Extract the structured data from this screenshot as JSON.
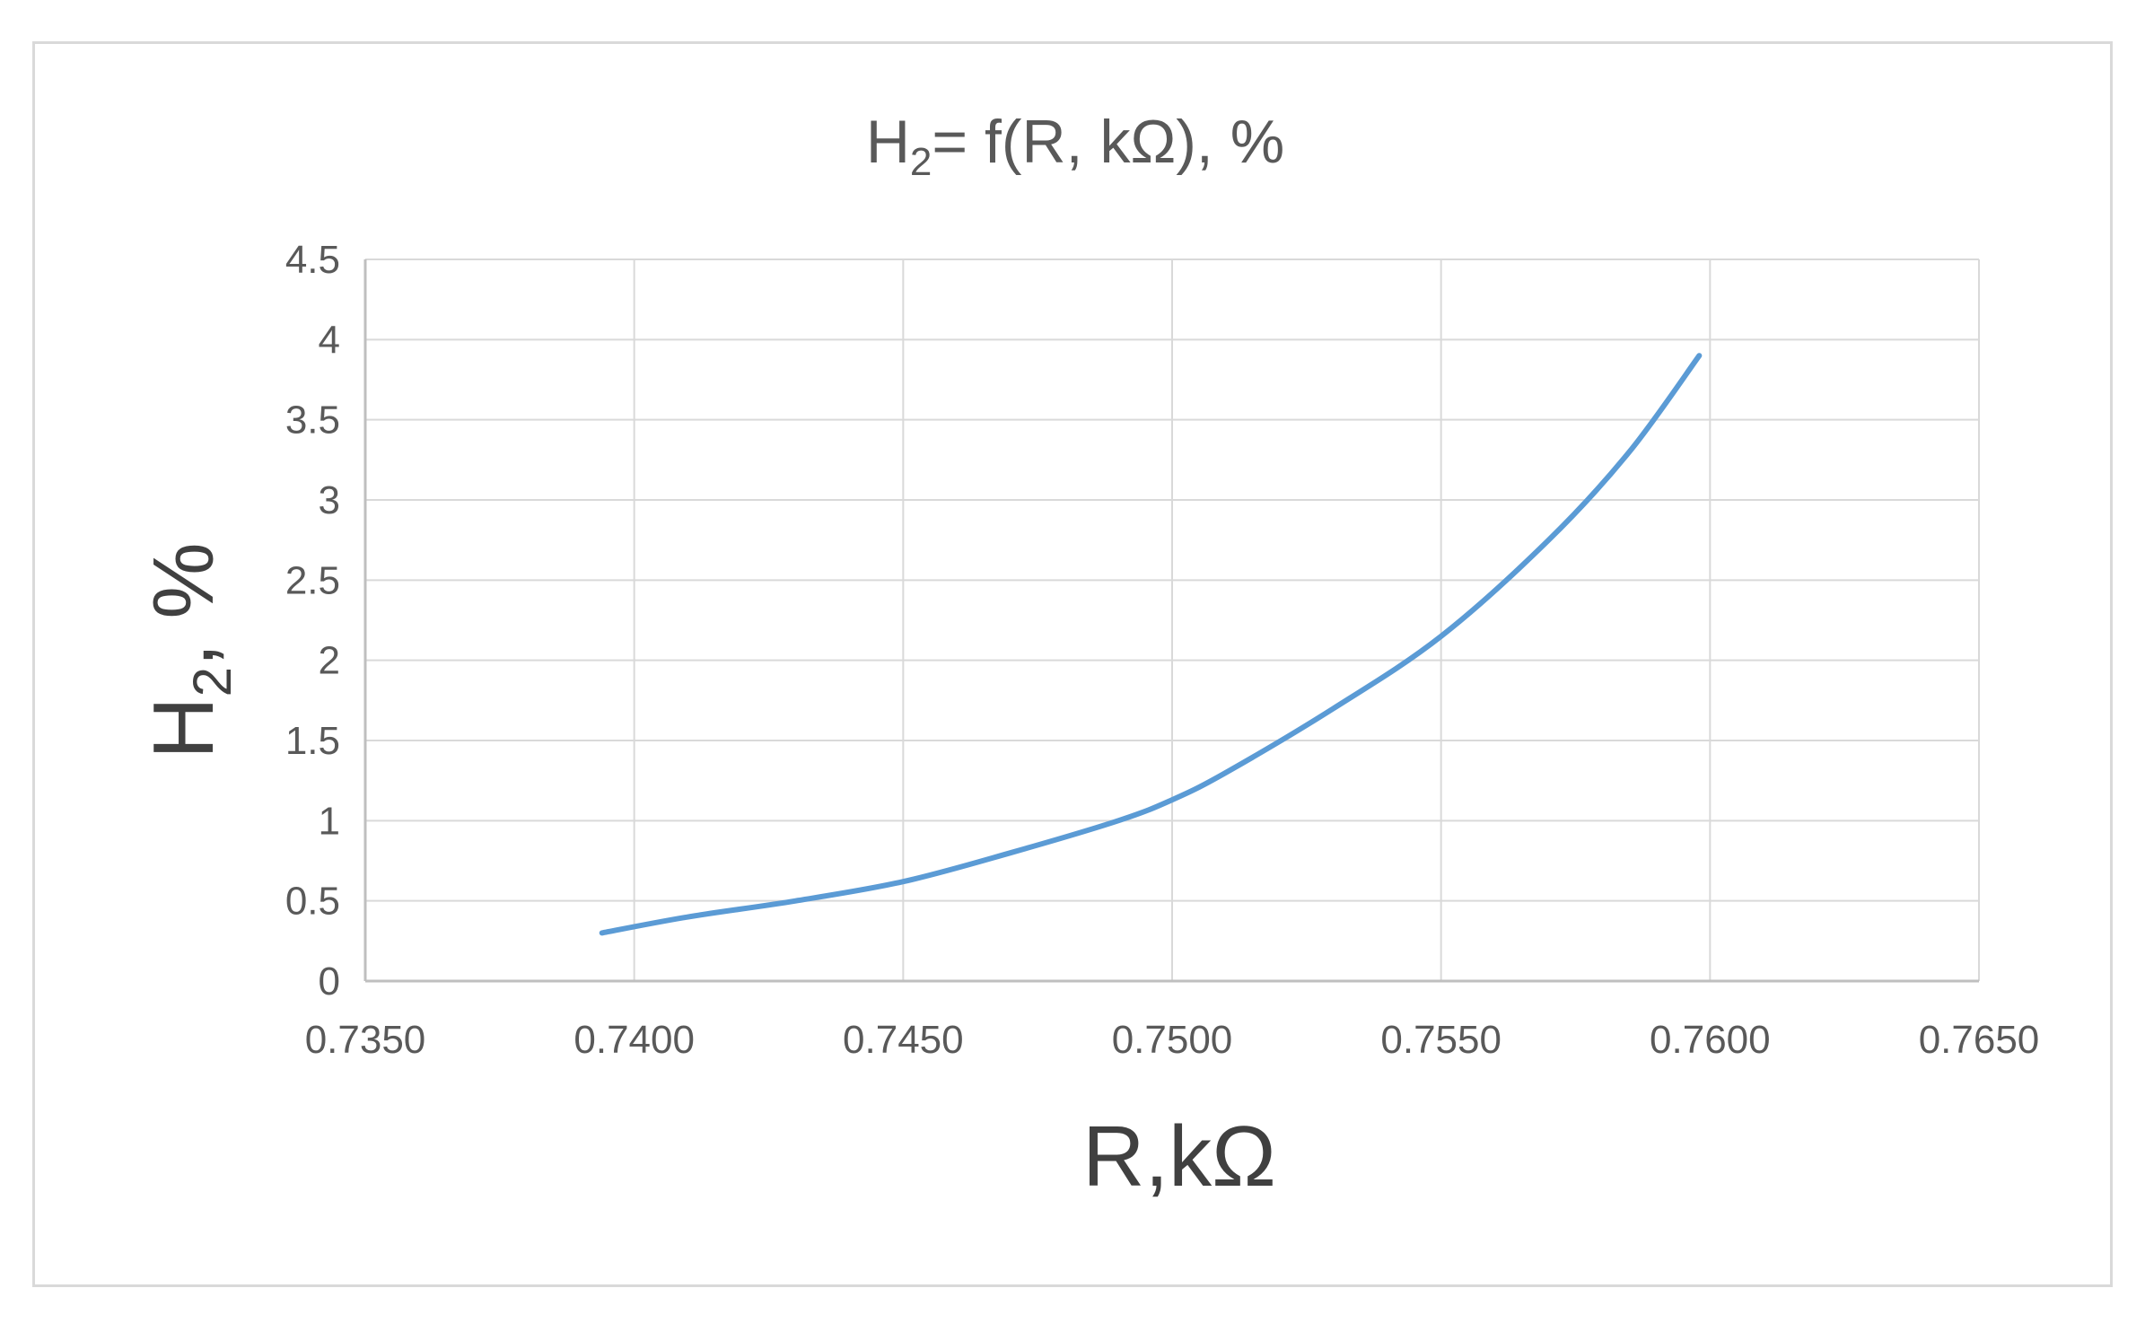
{
  "chart_data": {
    "type": "line",
    "title": {
      "main": "H",
      "sub": "2",
      "rest": "= f(R, kΩ), %"
    },
    "xlabel": "R,kΩ",
    "ylabel": {
      "main": "H",
      "sub": "2",
      "rest": ", %"
    },
    "xlim": [
      0.735,
      0.765
    ],
    "ylim": [
      0,
      4.5
    ],
    "x_ticks": [
      "0.7350",
      "0.7400",
      "0.7450",
      "0.7500",
      "0.7550",
      "0.7600",
      "0.7650"
    ],
    "x_tick_values": [
      0.735,
      0.74,
      0.745,
      0.75,
      0.755,
      0.76,
      0.765
    ],
    "y_ticks": [
      "0",
      "0.5",
      "1",
      "1.5",
      "2",
      "2.5",
      "3",
      "3.5",
      "4",
      "4.5"
    ],
    "y_tick_values": [
      0,
      0.5,
      1,
      1.5,
      2,
      2.5,
      3,
      3.5,
      4,
      4.5
    ],
    "grid": true,
    "legend": "none",
    "series": [
      {
        "color": "#5b9bd5",
        "x": [
          0.7394,
          0.741,
          0.743,
          0.745,
          0.747,
          0.749,
          0.75,
          0.751,
          0.753,
          0.755,
          0.757,
          0.7585,
          0.7598
        ],
        "y": [
          0.3,
          0.4,
          0.5,
          0.62,
          0.8,
          1.0,
          1.13,
          1.3,
          1.7,
          2.15,
          2.75,
          3.3,
          3.9
        ]
      }
    ]
  }
}
